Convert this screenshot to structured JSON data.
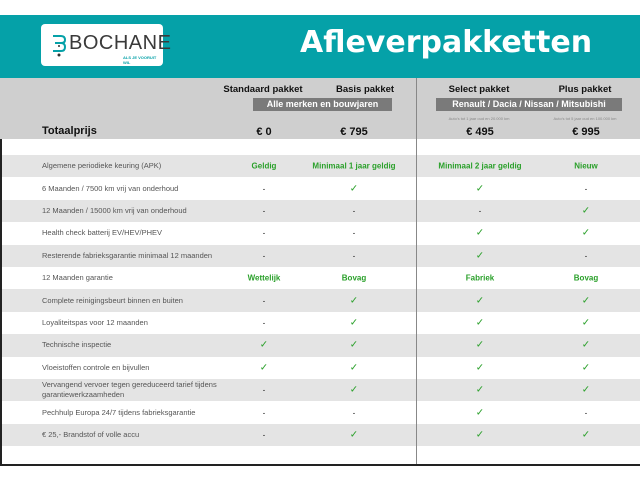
{
  "header": {
    "logo_name": "BOCHANE",
    "logo_tagline": "ALS JE VOORUIT WIL",
    "title": "Afleverpakketten",
    "brand_color": "#05a1a8"
  },
  "packages": [
    {
      "name": "Standaard pakket",
      "price": "€ 0"
    },
    {
      "name": "Basis pakket",
      "price": "€ 795"
    },
    {
      "name": "Select pakket",
      "price": "€ 495",
      "note": "Auto's tot 1 jaar oud en 20.000 km"
    },
    {
      "name": "Plus pakket",
      "price": "€ 995",
      "note": "Auto's tot 5 jaar oud en 100.000 km"
    }
  ],
  "bands": {
    "left": "Alle merken en bouwjaren",
    "right": "Renault / Dacia / Nissan / Mitsubishi"
  },
  "total_label": "Totaalprijs",
  "rows": [
    {
      "label": "Algemene periodieke keuring (APK)",
      "values": [
        "Geldig",
        "Minimaal 1 jaar geldig",
        "Minimaal 2 jaar geldig",
        "Nieuw"
      ]
    },
    {
      "label": "6 Maanden / 7500 km vrij van onderhoud",
      "values": [
        "-",
        "✓",
        "✓",
        "-"
      ]
    },
    {
      "label": "12 Maanden / 15000 km vrij van onderhoud",
      "values": [
        "-",
        "-",
        "-",
        "✓"
      ]
    },
    {
      "label": "Health check batterij EV/HEV/PHEV",
      "values": [
        "-",
        "-",
        "✓",
        "✓"
      ]
    },
    {
      "label": "Resterende fabrieksgarantie minimaal 12 maanden",
      "values": [
        "-",
        "-",
        "✓",
        "-"
      ]
    },
    {
      "label": "12 Maanden  garantie",
      "values": [
        "Wettelijk",
        "Bovag",
        "Fabriek",
        "Bovag"
      ]
    },
    {
      "label": "Complete reinigingsbeurt binnen en buiten",
      "values": [
        "-",
        "✓",
        "✓",
        "✓"
      ]
    },
    {
      "label": "Loyaliteitspas voor 12 maanden",
      "values": [
        "-",
        "✓",
        "✓",
        "✓"
      ]
    },
    {
      "label": "Technische inspectie",
      "values": [
        "✓",
        "✓",
        "✓",
        "✓"
      ]
    },
    {
      "label": "Vloeistoffen controle en bijvullen",
      "values": [
        "✓",
        "✓",
        "✓",
        "✓"
      ]
    },
    {
      "label": "Vervangend vervoer tegen gereduceerd tarief tijdens garantiewerkzaamheden",
      "values": [
        "-",
        "✓",
        "✓",
        "✓"
      ]
    },
    {
      "label": "Pechhulp Europa 24/7 tijdens fabrieksgarantie",
      "values": [
        "-",
        "-",
        "✓",
        "-"
      ]
    },
    {
      "label": "€ 25,- Brandstof of  volle accu",
      "values": [
        "-",
        "✓",
        "✓",
        "✓"
      ]
    }
  ]
}
